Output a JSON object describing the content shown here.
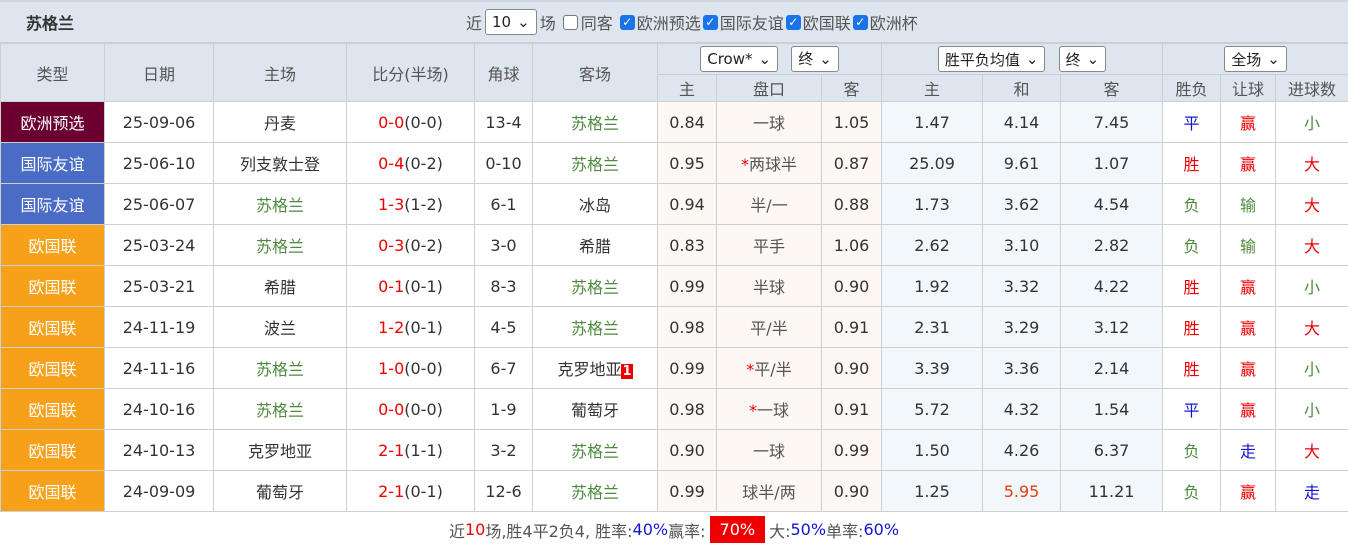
{
  "title": "苏格兰",
  "filters": {
    "near": "近",
    "count": "10",
    "games": "场",
    "same_away": "同客",
    "competitions": [
      "欧洲预选",
      "国际友谊",
      "欧国联",
      "欧洲杯"
    ]
  },
  "headers": {
    "type": "类型",
    "date": "日期",
    "home": "主场",
    "score": "比分(半场)",
    "corner": "角球",
    "away": "客场",
    "company": "Crow*",
    "stage1": "终",
    "avg": "胜平负均值",
    "stage2": "终",
    "scope": "全场",
    "sub": [
      "主",
      "盘口",
      "客",
      "主",
      "和",
      "客",
      "胜负",
      "让球",
      "进球数"
    ]
  },
  "colors": {
    "欧洲预选": "#6b0030",
    "国际友谊": "#4a6cc4",
    "欧国联": "#f7a01a"
  },
  "rows": [
    {
      "type": "欧洲预选",
      "date": "25-09-06",
      "home": "丹麦",
      "sc": "0-0",
      "ht": "(0-0)",
      "corner": "13-4",
      "away": "苏格兰",
      "o1": "0.84",
      "line": "一球",
      "o2": "1.05",
      "w": "1.47",
      "d": "4.14",
      "l": "7.45",
      "res": "平",
      "hc": "赢",
      "ou": "小",
      "hg": false,
      "ag": true
    },
    {
      "type": "国际友谊",
      "date": "25-06-10",
      "home": "列支敦士登",
      "sc": "0-4",
      "ht": "(0-2)",
      "corner": "0-10",
      "away": "苏格兰",
      "o1": "0.95",
      "star": "*",
      "line": "两球半",
      "o2": "0.87",
      "w": "25.09",
      "d": "9.61",
      "l": "1.07",
      "res": "胜",
      "hc": "赢",
      "ou": "大",
      "hg": false,
      "ag": true
    },
    {
      "type": "国际友谊",
      "date": "25-06-07",
      "home": "苏格兰",
      "sc": "1-3",
      "ht": "(1-2)",
      "corner": "6-1",
      "away": "冰岛",
      "o1": "0.94",
      "line": "半/一",
      "o2": "0.88",
      "w": "1.73",
      "d": "3.62",
      "l": "4.54",
      "res": "负",
      "hc": "输",
      "ou": "大",
      "hg": true,
      "ag": false
    },
    {
      "type": "欧国联",
      "date": "25-03-24",
      "home": "苏格兰",
      "sc": "0-3",
      "ht": "(0-2)",
      "corner": "3-0",
      "away": "希腊",
      "o1": "0.83",
      "line": "平手",
      "o2": "1.06",
      "w": "2.62",
      "d": "3.10",
      "l": "2.82",
      "res": "负",
      "hc": "输",
      "ou": "大",
      "hg": true,
      "ag": false
    },
    {
      "type": "欧国联",
      "date": "25-03-21",
      "home": "希腊",
      "sc": "0-1",
      "ht": "(0-1)",
      "corner": "8-3",
      "away": "苏格兰",
      "o1": "0.99",
      "line": "半球",
      "o2": "0.90",
      "w": "1.92",
      "d": "3.32",
      "l": "4.22",
      "res": "胜",
      "hc": "赢",
      "ou": "小",
      "hg": false,
      "ag": true
    },
    {
      "type": "欧国联",
      "date": "24-11-19",
      "home": "波兰",
      "sc": "1-2",
      "ht": "(0-1)",
      "corner": "4-5",
      "away": "苏格兰",
      "o1": "0.98",
      "line": "平/半",
      "o2": "0.91",
      "w": "2.31",
      "d": "3.29",
      "l": "3.12",
      "res": "胜",
      "hc": "赢",
      "ou": "大",
      "hg": false,
      "ag": true
    },
    {
      "type": "欧国联",
      "date": "24-11-16",
      "home": "苏格兰",
      "sc": "1-0",
      "ht": "(0-0)",
      "corner": "6-7",
      "away": "克罗地亚",
      "redcard": "1",
      "o1": "0.99",
      "star": "*",
      "line": "平/半",
      "o2": "0.90",
      "w": "3.39",
      "d": "3.36",
      "l": "2.14",
      "res": "胜",
      "hc": "赢",
      "ou": "小",
      "hg": true,
      "ag": false
    },
    {
      "type": "欧国联",
      "date": "24-10-16",
      "home": "苏格兰",
      "sc": "0-0",
      "ht": "(0-0)",
      "corner": "1-9",
      "away": "葡萄牙",
      "o1": "0.98",
      "star": "*",
      "line": "一球",
      "o2": "0.91",
      "w": "5.72",
      "d": "4.32",
      "l": "1.54",
      "res": "平",
      "hc": "赢",
      "ou": "小",
      "hg": true,
      "ag": false
    },
    {
      "type": "欧国联",
      "date": "24-10-13",
      "home": "克罗地亚",
      "sc": "2-1",
      "ht": "(1-1)",
      "corner": "3-2",
      "away": "苏格兰",
      "o1": "0.90",
      "line": "一球",
      "o2": "0.99",
      "w": "1.50",
      "d": "4.26",
      "l": "6.37",
      "res": "负",
      "hc": "走",
      "ou": "大",
      "hg": false,
      "ag": true
    },
    {
      "type": "欧国联",
      "date": "24-09-09",
      "home": "葡萄牙",
      "sc": "2-1",
      "ht": "(0-1)",
      "corner": "12-6",
      "away": "苏格兰",
      "o1": "0.99",
      "line": "球半/两",
      "o2": "0.90",
      "w": "1.25",
      "d": "5.95",
      "l": "11.21",
      "res": "负",
      "hc": "赢",
      "ou": "走",
      "hg": false,
      "ag": true,
      "dred": true
    }
  ],
  "footer": {
    "p1": "近",
    "n": "10",
    "p2": "场,胜4平2负4, 胜率:",
    "win": "40%",
    "p3": " 赢率:",
    "hcw": "70%",
    "p4": " 大:",
    "big": "50%",
    "p5": " 单率:",
    "odd": "60%"
  }
}
